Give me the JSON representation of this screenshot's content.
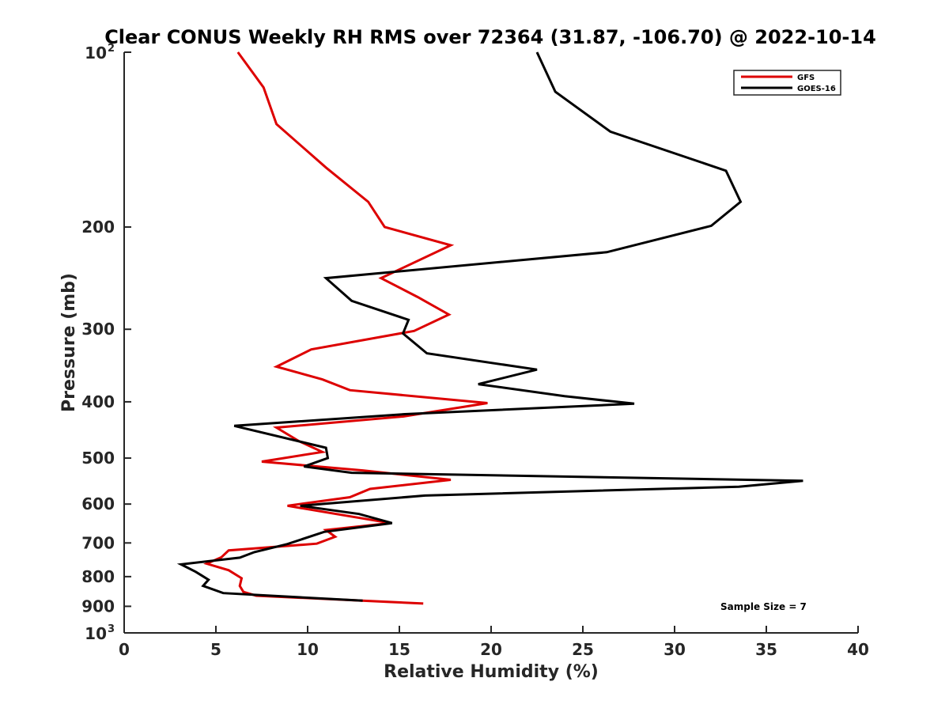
{
  "chart_data": {
    "type": "line",
    "title": "Clear CONUS Weekly RH RMS over 72364 (31.87, -106.70) @ 2022-10-14",
    "xlabel": "Relative Humidity (%)",
    "ylabel": "Pressure (mb)",
    "xlim": [
      0,
      40
    ],
    "ylim": [
      100,
      1000
    ],
    "y_scale": "log",
    "y_reversed": true,
    "grid": false,
    "legend_location": "top-right",
    "x_ticks": [
      0,
      5,
      10,
      15,
      20,
      25,
      30,
      35,
      40
    ],
    "y_ticks": [
      {
        "value": 100,
        "base": "10",
        "exp": "2"
      },
      {
        "value": 200,
        "label": "200"
      },
      {
        "value": 300,
        "label": "300"
      },
      {
        "value": 400,
        "label": "400"
      },
      {
        "value": 500,
        "label": "500"
      },
      {
        "value": 600,
        "label": "600"
      },
      {
        "value": 700,
        "label": "700"
      },
      {
        "value": 800,
        "label": "800"
      },
      {
        "value": 900,
        "label": "900"
      },
      {
        "value": 1000,
        "base": "10",
        "exp": "3"
      }
    ],
    "series": [
      {
        "name": "GFS",
        "color": "#dd0000",
        "points": [
          [
            6.2,
            100
          ],
          [
            7.6,
            115
          ],
          [
            8.3,
            133
          ],
          [
            11.0,
            158
          ],
          [
            13.3,
            181
          ],
          [
            14.2,
            200
          ],
          [
            17.8,
            215
          ],
          [
            14.0,
            245
          ],
          [
            16.0,
            264
          ],
          [
            17.7,
            283
          ],
          [
            15.8,
            302
          ],
          [
            10.2,
            325
          ],
          [
            8.3,
            348
          ],
          [
            10.8,
            366
          ],
          [
            12.3,
            382
          ],
          [
            19.8,
            402
          ],
          [
            15.2,
            424
          ],
          [
            8.3,
            443
          ],
          [
            9.5,
            467
          ],
          [
            10.8,
            488
          ],
          [
            7.5,
            507
          ],
          [
            13.0,
            525
          ],
          [
            17.8,
            545
          ],
          [
            13.4,
            565
          ],
          [
            12.3,
            584
          ],
          [
            8.9,
            604
          ],
          [
            14.5,
            647
          ],
          [
            11.0,
            665
          ],
          [
            11.5,
            683
          ],
          [
            10.5,
            702
          ],
          [
            5.7,
            721
          ],
          [
            5.3,
            741
          ],
          [
            4.5,
            760
          ],
          [
            5.7,
            780
          ],
          [
            6.4,
            805
          ],
          [
            6.3,
            830
          ],
          [
            6.5,
            850
          ],
          [
            7.2,
            863
          ],
          [
            16.3,
            890
          ]
        ]
      },
      {
        "name": "GOES-16",
        "color": "#000000",
        "points": [
          [
            22.5,
            100
          ],
          [
            23.5,
            117
          ],
          [
            26.5,
            137
          ],
          [
            32.8,
            160
          ],
          [
            33.6,
            181
          ],
          [
            32.0,
            199
          ],
          [
            26.3,
            221
          ],
          [
            11.0,
            245
          ],
          [
            12.4,
            268
          ],
          [
            15.5,
            289
          ],
          [
            15.2,
            305
          ],
          [
            16.5,
            330
          ],
          [
            22.5,
            352
          ],
          [
            19.3,
            373
          ],
          [
            24.0,
            391
          ],
          [
            27.8,
            403
          ],
          [
            15.3,
            420
          ],
          [
            6.0,
            440
          ],
          [
            11.0,
            480
          ],
          [
            11.1,
            500
          ],
          [
            9.8,
            517
          ],
          [
            12.4,
            530
          ],
          [
            37.0,
            547
          ],
          [
            33.5,
            560
          ],
          [
            16.4,
            580
          ],
          [
            9.6,
            604
          ],
          [
            12.8,
            624
          ],
          [
            14.6,
            647
          ],
          [
            10.9,
            670
          ],
          [
            8.9,
            703
          ],
          [
            7.1,
            726
          ],
          [
            6.3,
            742
          ],
          [
            3.1,
            762
          ],
          [
            3.9,
            785
          ],
          [
            4.6,
            810
          ],
          [
            4.3,
            830
          ],
          [
            5.4,
            854
          ],
          [
            13.0,
            880
          ]
        ]
      }
    ],
    "annotation": "Sample Size = 7"
  }
}
